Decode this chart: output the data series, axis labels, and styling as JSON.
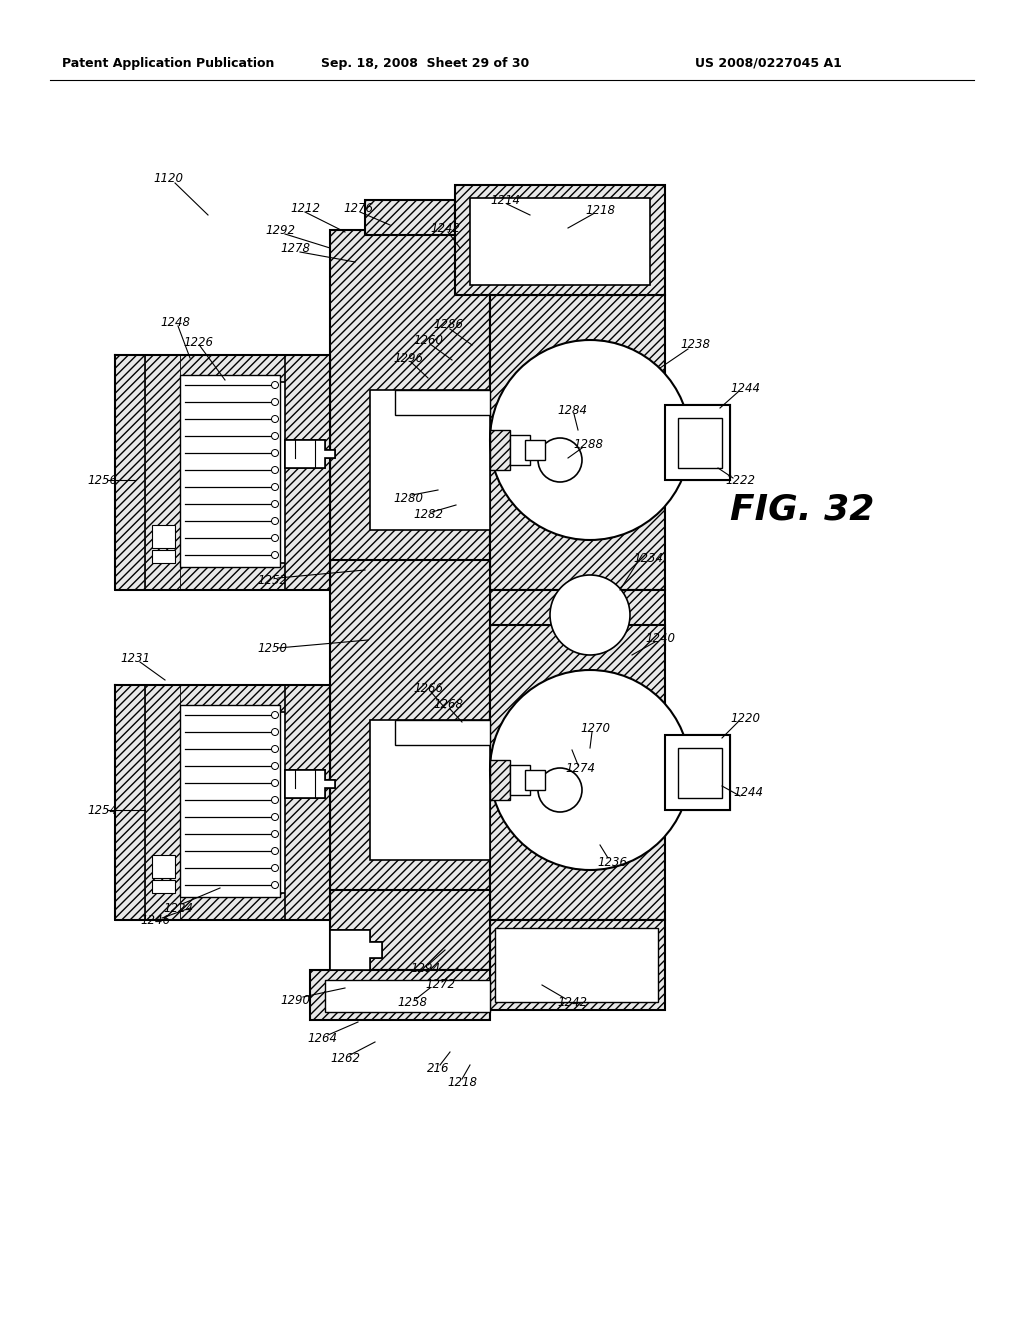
{
  "header_left": "Patent Application Publication",
  "header_mid": "Sep. 18, 2008  Sheet 29 of 30",
  "header_right": "US 2008/0227045 A1",
  "fig_label": "FIG. 32",
  "background": "#ffffff"
}
